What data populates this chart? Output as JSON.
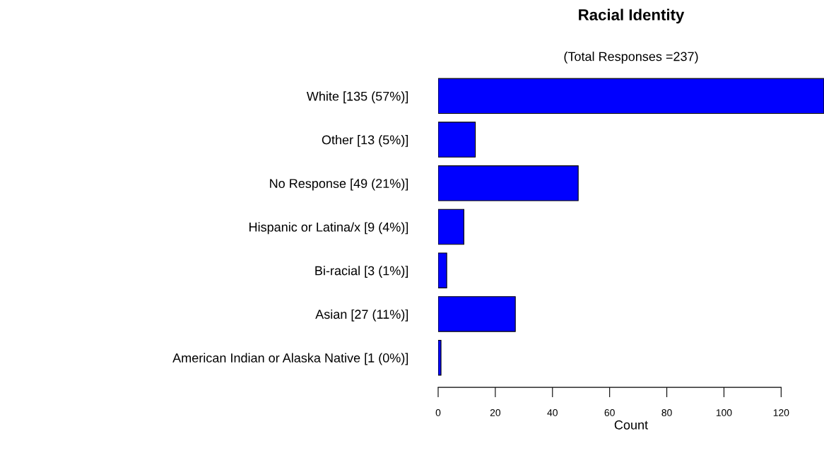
{
  "chart_data": {
    "type": "bar",
    "orientation": "horizontal",
    "title": "Racial Identity",
    "subtitle": "(Total Responses =237)",
    "xlabel": "Count",
    "categories": [
      "White [135 (57%)]",
      "Other [13 (5%)]",
      "No Response [49 (21%)]",
      "Hispanic or Latina/x [9 (4%)]",
      "Bi-racial [3 (1%)]",
      "Asian [27 (11%)]",
      "American Indian or Alaska Native [1 (0%)]"
    ],
    "values": [
      135,
      13,
      49,
      9,
      3,
      27,
      1
    ],
    "color": "#0000ff",
    "xlim": [
      0,
      135
    ],
    "xticks": [
      0,
      20,
      40,
      60,
      80,
      100,
      120
    ],
    "grid": false,
    "legend": false
  }
}
